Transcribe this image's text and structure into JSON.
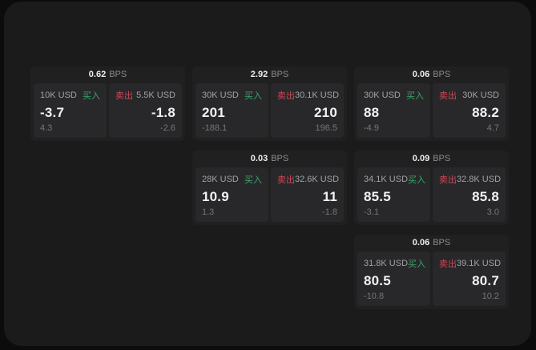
{
  "labels": {
    "bps": "BPS",
    "buy": "买入",
    "sell": "卖出"
  },
  "colors": {
    "buy": "#3ea46b",
    "sell": "#c8495a",
    "window-bg": "#1b1b1c",
    "card-bg": "#202021",
    "panel-bg": "#28282a"
  },
  "cards": [
    {
      "bps": "0.62",
      "buy": {
        "size": "10K USD",
        "value": "-3.7",
        "sub": "4.3"
      },
      "sell": {
        "size": "5.5K USD",
        "value": "-1.8",
        "sub": "-2.6"
      }
    },
    {
      "bps": "2.92",
      "buy": {
        "size": "30K USD",
        "value": "201",
        "sub": "-188.1"
      },
      "sell": {
        "size": "30.1K USD",
        "value": "210",
        "sub": "196.5"
      }
    },
    {
      "bps": "0.06",
      "buy": {
        "size": "30K USD",
        "value": "88",
        "sub": "-4.9"
      },
      "sell": {
        "size": "30K USD",
        "value": "88.2",
        "sub": "4.7"
      }
    },
    {
      "bps": "0.03",
      "buy": {
        "size": "28K USD",
        "value": "10.9",
        "sub": "1.3"
      },
      "sell": {
        "size": "32.6K USD",
        "value": "11",
        "sub": "-1.8"
      }
    },
    {
      "bps": "0.09",
      "buy": {
        "size": "34.1K USD",
        "value": "85.5",
        "sub": "-3.1"
      },
      "sell": {
        "size": "32.8K USD",
        "value": "85.8",
        "sub": "3.0"
      }
    },
    {
      "bps": "0.06",
      "buy": {
        "size": "31.8K USD",
        "value": "80.5",
        "sub": "-10.8"
      },
      "sell": {
        "size": "39.1K USD",
        "value": "80.7",
        "sub": "10.2"
      }
    }
  ]
}
